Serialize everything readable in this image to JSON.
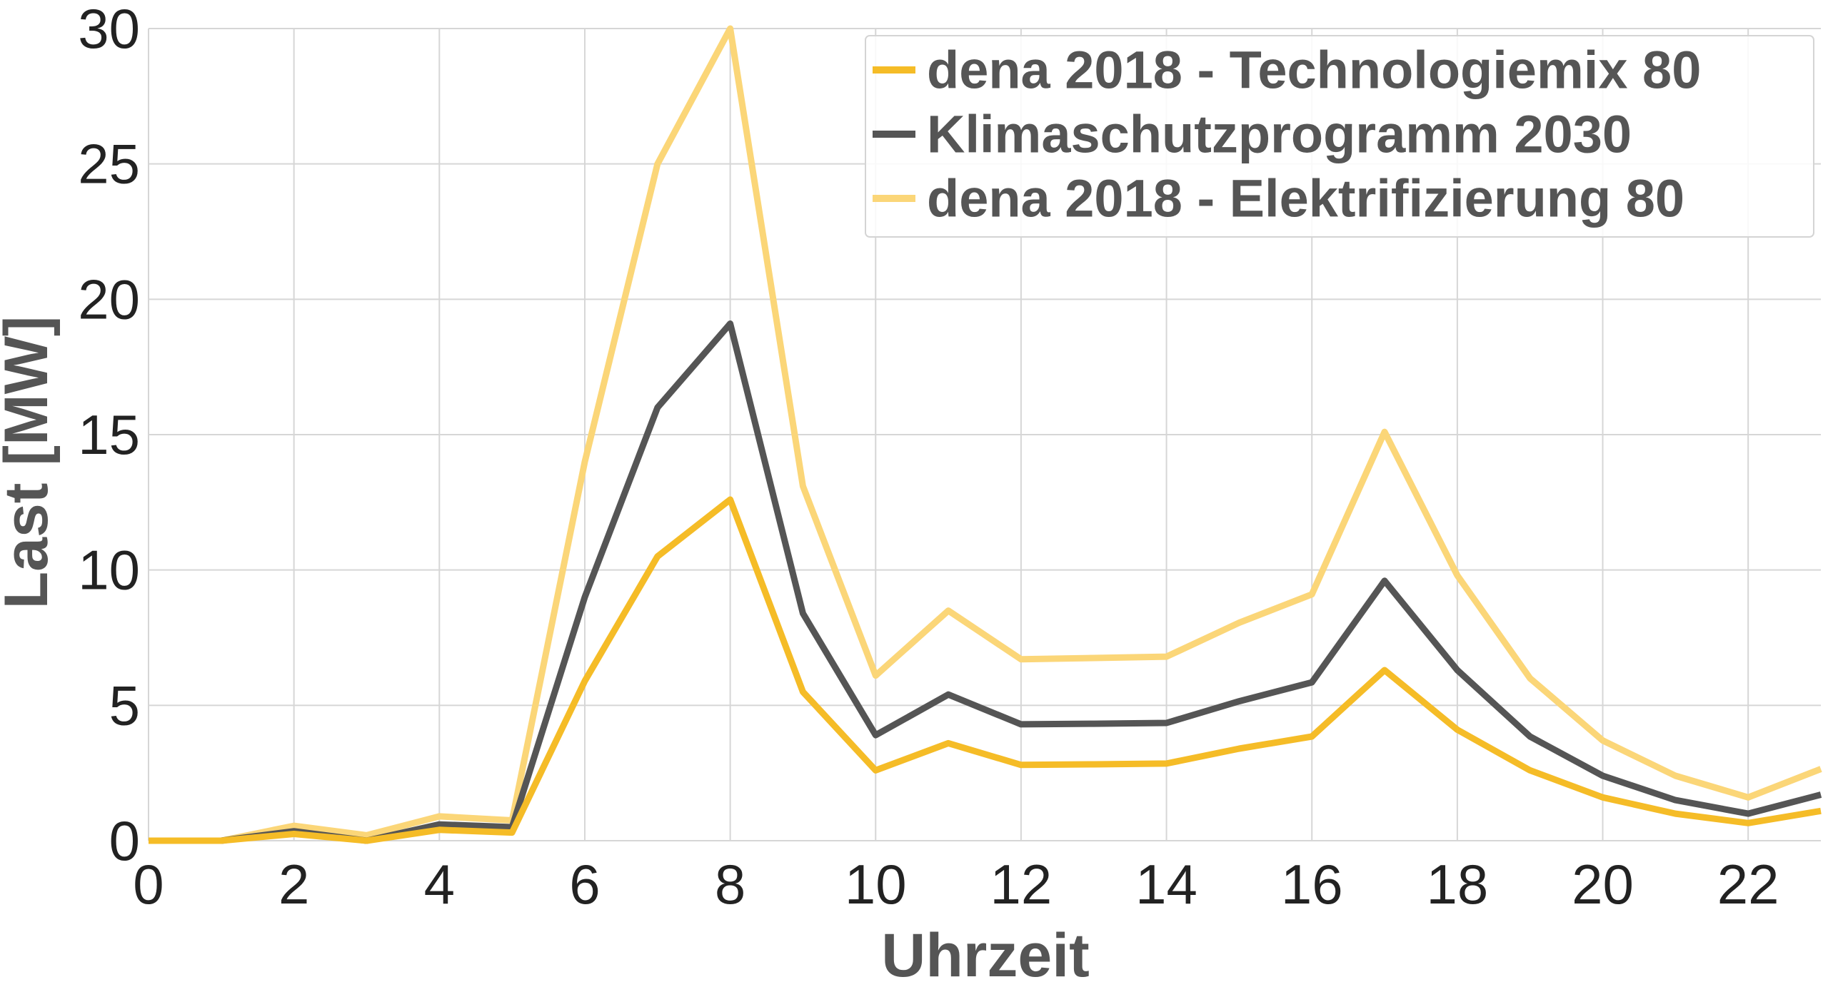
{
  "chart_data": {
    "type": "line",
    "title": "",
    "xlabel": "Uhrzeit",
    "ylabel": "Last [MW]",
    "xlim": [
      0,
      23
    ],
    "ylim": [
      0,
      30
    ],
    "x_ticks": [
      "0",
      "2",
      "4",
      "6",
      "8",
      "10",
      "12",
      "14",
      "16",
      "18",
      "20",
      "22"
    ],
    "y_ticks": [
      "0",
      "5",
      "10",
      "15",
      "20",
      "25",
      "30"
    ],
    "grid": true,
    "legend_position": "top-right",
    "x": [
      0,
      1,
      2,
      3,
      4,
      5,
      6,
      7,
      8,
      9,
      10,
      11,
      12,
      13,
      14,
      15,
      16,
      17,
      18,
      19,
      20,
      21,
      22,
      23
    ],
    "series": [
      {
        "name": "dena 2018 - Technologiemix 80",
        "color": "#F5BC27",
        "values": [
          0,
          0,
          0.25,
          0,
          0.4,
          0.3,
          5.9,
          10.5,
          12.6,
          5.5,
          2.6,
          3.6,
          2.8,
          2.82,
          2.85,
          3.4,
          3.85,
          6.3,
          4.1,
          2.6,
          1.6,
          1.0,
          0.65,
          1.1
        ]
      },
      {
        "name": "Klimaschutzprogramm 2030",
        "color": "#555555",
        "values": [
          0,
          0,
          0.35,
          0,
          0.6,
          0.5,
          9.0,
          16.0,
          19.1,
          8.4,
          3.9,
          5.4,
          4.3,
          4.32,
          4.35,
          5.15,
          5.85,
          9.6,
          6.3,
          3.85,
          2.4,
          1.5,
          1.0,
          1.7
        ]
      },
      {
        "name": "dena 2018 - Elektrifizierung 80",
        "color": "#FBD678",
        "values": [
          0,
          0,
          0.55,
          0.2,
          0.9,
          0.75,
          14.0,
          25.0,
          30.0,
          13.1,
          6.1,
          8.5,
          6.7,
          6.75,
          6.8,
          8.05,
          9.1,
          15.1,
          9.8,
          6.0,
          3.7,
          2.4,
          1.6,
          2.65
        ]
      }
    ]
  }
}
